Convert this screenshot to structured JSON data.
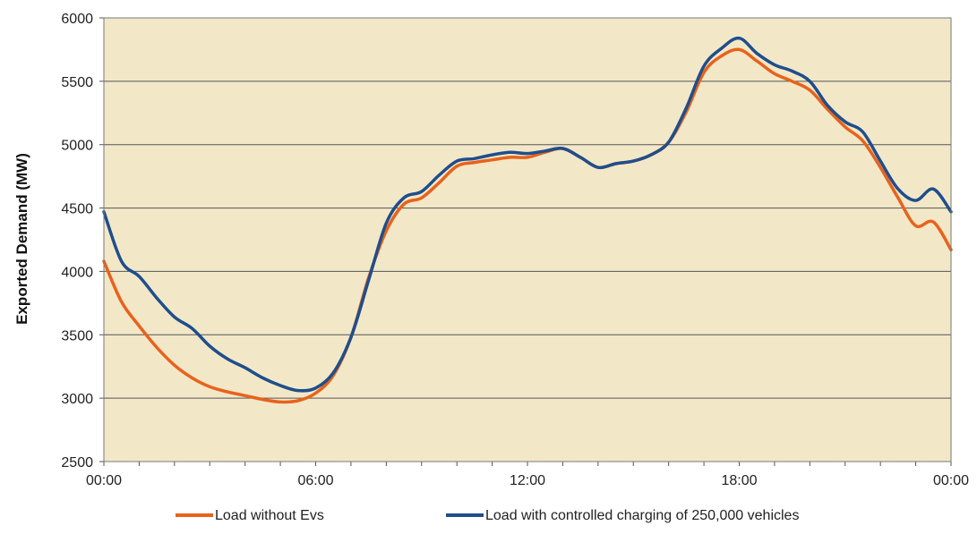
{
  "chart_data": {
    "type": "line",
    "title": "",
    "xlabel": "",
    "ylabel": "Exported Demand (MW)",
    "ylim": [
      2500,
      6000
    ],
    "yticks": [
      2500,
      3000,
      3500,
      4000,
      4500,
      5000,
      5500,
      6000
    ],
    "xlim": [
      0,
      24
    ],
    "xticks": [
      0,
      6,
      12,
      18,
      24
    ],
    "xtick_labels": [
      "00:00",
      "06:00",
      "12:00",
      "18:00",
      "00:00"
    ],
    "grid": "horizontal",
    "legend_position": "bottom",
    "plot_background": "#f2e8c8",
    "series": [
      {
        "name": "Load without Evs",
        "color": "#e8621c",
        "x": [
          0,
          0.5,
          1,
          1.5,
          2,
          2.5,
          3,
          3.5,
          4,
          4.5,
          5,
          5.5,
          6,
          6.5,
          7,
          7.5,
          8,
          8.5,
          9,
          9.5,
          10,
          10.5,
          11,
          11.5,
          12,
          12.5,
          13,
          13.5,
          14,
          14.5,
          15,
          15.5,
          16,
          16.5,
          17,
          17.5,
          18,
          18.5,
          19,
          19.5,
          20,
          20.5,
          21,
          21.5,
          22,
          22.5,
          23,
          23.5,
          24
        ],
        "y": [
          4080,
          3760,
          3570,
          3400,
          3260,
          3160,
          3090,
          3050,
          3020,
          2990,
          2970,
          2980,
          3040,
          3180,
          3480,
          3950,
          4320,
          4530,
          4580,
          4700,
          4830,
          4860,
          4880,
          4900,
          4900,
          4940,
          4970,
          4900,
          4820,
          4850,
          4870,
          4920,
          5020,
          5260,
          5570,
          5700,
          5750,
          5660,
          5560,
          5500,
          5430,
          5280,
          5140,
          5030,
          4820,
          4580,
          4360,
          4390,
          4170
        ]
      },
      {
        "name": "Load with controlled charging of 250,000 vehicles",
        "color": "#1f4e8c",
        "x": [
          0,
          0.5,
          1,
          1.5,
          2,
          2.5,
          3,
          3.5,
          4,
          4.5,
          5,
          5.5,
          6,
          6.5,
          7,
          7.5,
          8,
          8.5,
          9,
          9.5,
          10,
          10.5,
          11,
          11.5,
          12,
          12.5,
          13,
          13.5,
          14,
          14.5,
          15,
          15.5,
          16,
          16.5,
          17,
          17.5,
          18,
          18.5,
          19,
          19.5,
          20,
          20.5,
          21,
          21.5,
          22,
          22.5,
          23,
          23.5,
          24
        ],
        "y": [
          4470,
          4080,
          3960,
          3790,
          3640,
          3550,
          3410,
          3310,
          3240,
          3160,
          3100,
          3060,
          3080,
          3200,
          3480,
          3930,
          4380,
          4580,
          4630,
          4760,
          4870,
          4890,
          4920,
          4940,
          4930,
          4950,
          4970,
          4900,
          4820,
          4850,
          4870,
          4920,
          5020,
          5290,
          5620,
          5760,
          5840,
          5720,
          5630,
          5580,
          5500,
          5310,
          5180,
          5100,
          4870,
          4650,
          4560,
          4650,
          4470
        ]
      }
    ]
  }
}
